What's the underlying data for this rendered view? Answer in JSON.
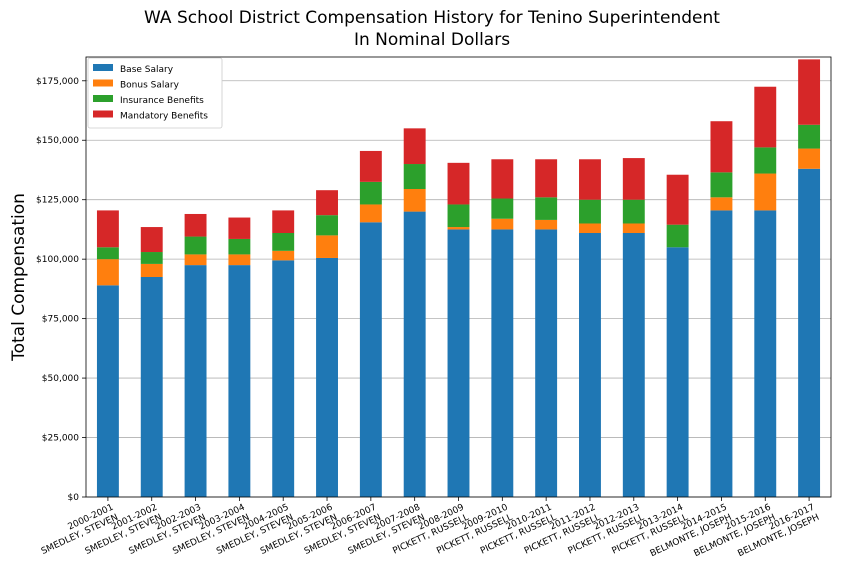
{
  "chart_data": {
    "type": "bar",
    "stacked": true,
    "title_line1": "WA School District Compensation History for Tenino Superintendent",
    "title_line2": "In Nominal Dollars",
    "ylabel": "Total Compensation",
    "xlabel": "",
    "ylim": [
      0,
      185000
    ],
    "yticks": [
      0,
      25000,
      50000,
      75000,
      100000,
      125000,
      150000,
      175000
    ],
    "ytick_labels": [
      "$0",
      "$25,000",
      "$50,000",
      "$75,000",
      "$100,000",
      "$125,000",
      "$150,000",
      "$175,000"
    ],
    "grid": "y",
    "legend_position": "top-left",
    "categories": [
      [
        "2000-2001",
        "SMEDLEY, STEVEN"
      ],
      [
        "2001-2002",
        "SMEDLEY, STEVEN"
      ],
      [
        "2002-2003",
        "SMEDLEY, STEVEN"
      ],
      [
        "2003-2004",
        "SMEDLEY, STEVEN"
      ],
      [
        "2004-2005",
        "SMEDLEY, STEVEN"
      ],
      [
        "2005-2006",
        "SMEDLEY, STEVEN"
      ],
      [
        "2006-2007",
        "SMEDLEY, STEVEN"
      ],
      [
        "2007-2008",
        "SMEDLEY, STEVEN"
      ],
      [
        "2008-2009",
        "PICKETT, RUSSELL"
      ],
      [
        "2009-2010",
        "PICKETT, RUSSELL"
      ],
      [
        "2010-2011",
        "PICKETT, RUSSELL"
      ],
      [
        "2011-2012",
        "PICKETT, RUSSELL"
      ],
      [
        "2012-2013",
        "PICKETT, RUSSELL"
      ],
      [
        "2013-2014",
        "PICKETT, RUSSELL"
      ],
      [
        "2014-2015",
        "BELMONTE, JOSEPH"
      ],
      [
        "2015-2016",
        "BELMONTE, JOSEPH"
      ],
      [
        "2016-2017",
        "BELMONTE, JOSEPH"
      ]
    ],
    "series": [
      {
        "name": "Base Salary",
        "color": "#1f77b4",
        "values": [
          89000,
          92500,
          97500,
          97500,
          99500,
          100500,
          115500,
          120000,
          112500,
          112500,
          112500,
          111000,
          111000,
          105000,
          120500,
          120500,
          138000
        ]
      },
      {
        "name": "Bonus Salary",
        "color": "#ff7f0e",
        "values": [
          11000,
          5500,
          4500,
          4500,
          4000,
          9500,
          7500,
          9500,
          1000,
          4500,
          4000,
          4000,
          4000,
          0,
          5500,
          15500,
          8500
        ]
      },
      {
        "name": "Insurance Benefits",
        "color": "#2ca02c",
        "values": [
          5000,
          5000,
          7500,
          6500,
          7500,
          8500,
          9500,
          10500,
          9500,
          8500,
          9500,
          10000,
          10000,
          9500,
          10500,
          11000,
          10000
        ]
      },
      {
        "name": "Mandatory Benefits",
        "color": "#d62728",
        "values": [
          15500,
          10500,
          9500,
          9000,
          9500,
          10500,
          13000,
          15000,
          17500,
          16500,
          16000,
          17000,
          17500,
          21000,
          21500,
          25500,
          27500
        ]
      }
    ]
  }
}
